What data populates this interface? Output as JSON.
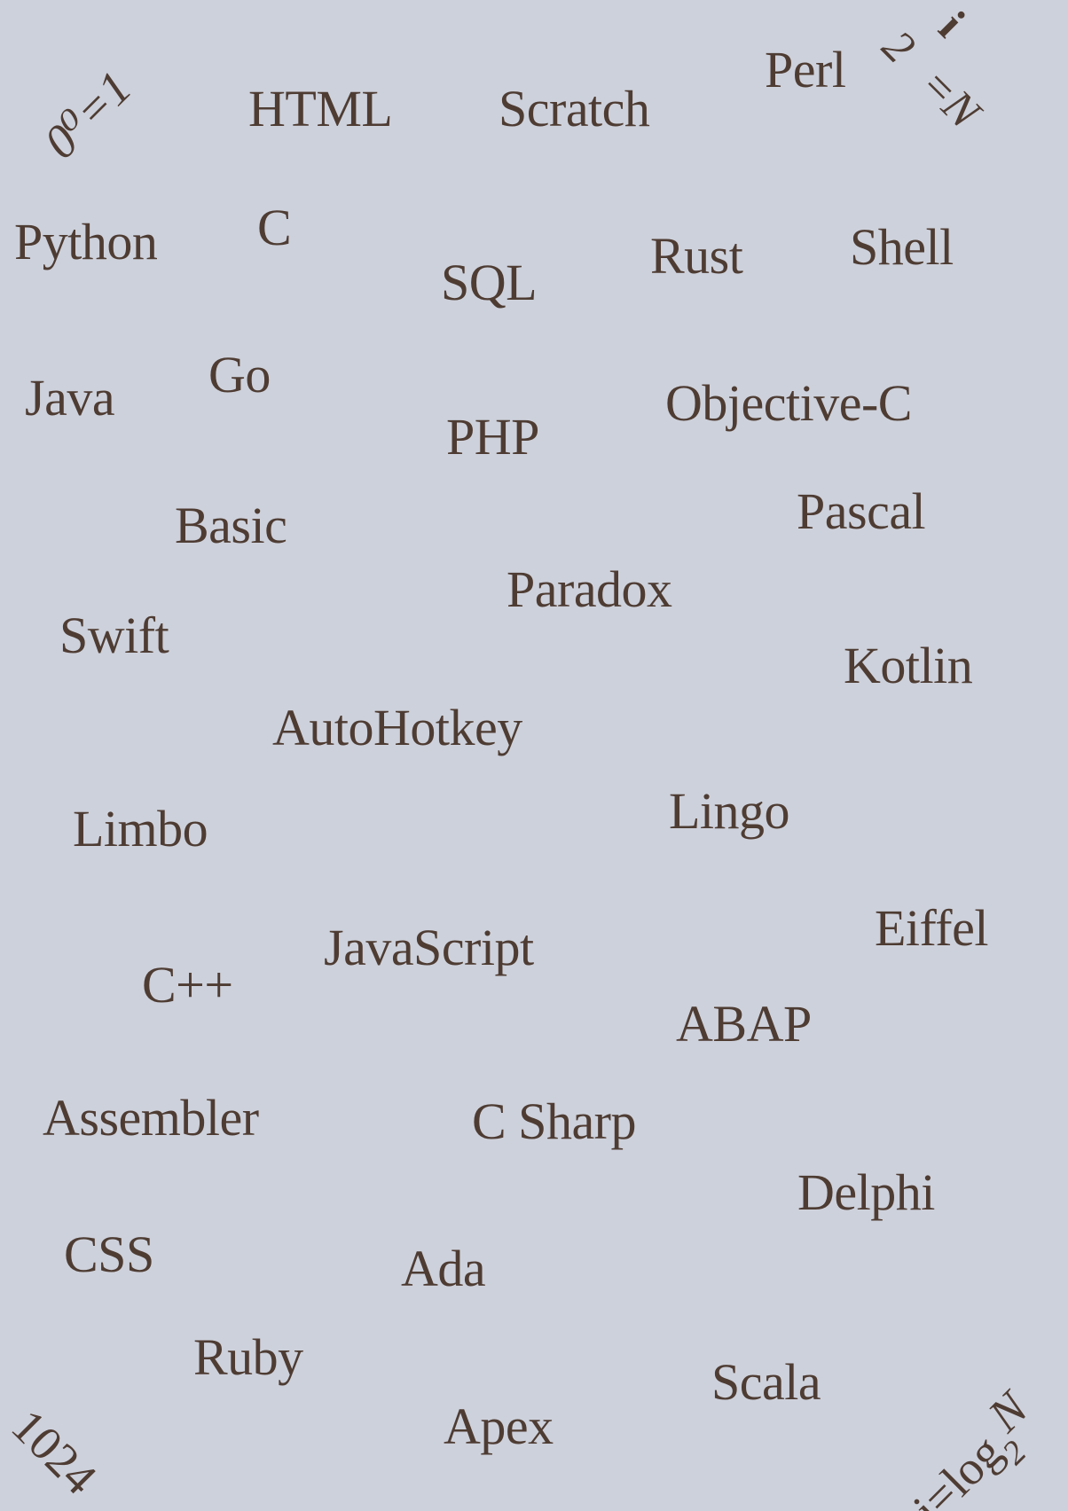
{
  "languages": {
    "html": "HTML",
    "scratch": "Scratch",
    "perl": "Perl",
    "python": "Python",
    "c": "C",
    "sql": "SQL",
    "rust": "Rust",
    "shell": "Shell",
    "java": "Java",
    "go": "Go",
    "php": "PHP",
    "objective_c": "Objective-C",
    "basic": "Basic",
    "pascal": "Pascal",
    "paradox": "Paradox",
    "swift": "Swift",
    "kotlin": "Kotlin",
    "autohotkey": "AutoHotkey",
    "limbo": "Limbo",
    "lingo": "Lingo",
    "eiffel": "Eiffel",
    "javascript": "JavaScript",
    "cpp": "C++",
    "abap": "ABAP",
    "assembler": "Assembler",
    "csharp": "C Sharp",
    "delphi": "Delphi",
    "css": "CSS",
    "ada": "Ada",
    "ruby": "Ruby",
    "scala": "Scala",
    "apex": "Apex"
  },
  "corners": {
    "top_left": "0⁰=1",
    "top_right_i": "i",
    "top_right_two": "2",
    "top_right_eq": "=N",
    "bottom_left": "1024",
    "bottom_right_main": "i=log",
    "bottom_right_sub": "2",
    "bottom_right_n": "N"
  },
  "colors": {
    "background": "#cdd1db",
    "text": "#4e3c33"
  }
}
